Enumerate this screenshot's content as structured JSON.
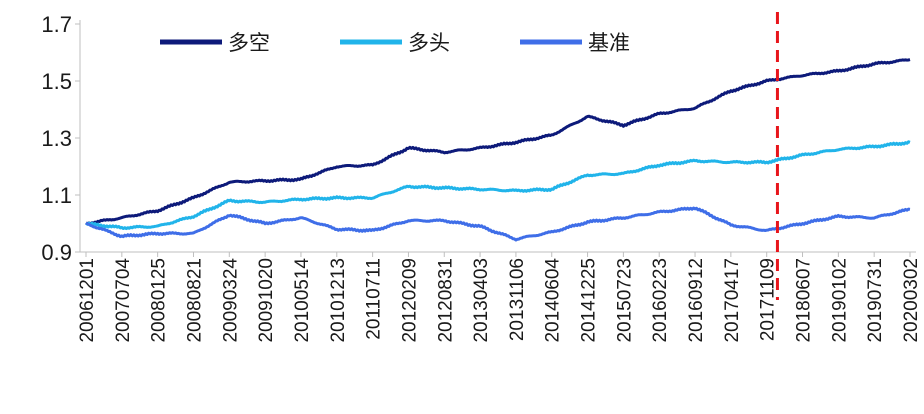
{
  "chart_data": {
    "type": "line",
    "title": "",
    "xlabel": "",
    "ylabel": "",
    "ylim": [
      0.9,
      1.7
    ],
    "yticks": [
      "0.9",
      "1.1",
      "1.3",
      "1.5",
      "1.7"
    ],
    "grid": false,
    "legend_position": "top",
    "x_ticks": [
      "20061201",
      "20070704",
      "20080125",
      "20080821",
      "20090324",
      "20091020",
      "20100514",
      "20101213",
      "20110711",
      "20120209",
      "20120831",
      "20130403",
      "20131106",
      "20140604",
      "20141225",
      "20150723",
      "20160223",
      "20160912",
      "20170417",
      "20171109",
      "20180607",
      "20190102",
      "20190731",
      "20200302"
    ],
    "vertical_marker": {
      "x_index": 19.3,
      "color": "#e8151b",
      "style": "dashed"
    },
    "series": [
      {
        "name": "多空",
        "color": "#0d1a7a",
        "values": [
          1.0,
          1.02,
          1.045,
          1.09,
          1.145,
          1.15,
          1.155,
          1.2,
          1.205,
          1.265,
          1.25,
          1.265,
          1.285,
          1.31,
          1.375,
          1.345,
          1.385,
          1.405,
          1.465,
          1.5,
          1.52,
          1.535,
          1.56,
          1.575
        ]
      },
      {
        "name": "多头",
        "color": "#21b4ea",
        "values": [
          1.0,
          0.985,
          0.99,
          1.025,
          1.08,
          1.075,
          1.085,
          1.09,
          1.09,
          1.13,
          1.125,
          1.12,
          1.115,
          1.12,
          1.17,
          1.175,
          1.205,
          1.22,
          1.215,
          1.215,
          1.24,
          1.26,
          1.27,
          1.285
        ]
      },
      {
        "name": "基准",
        "color": "#3f6ee8",
        "values": [
          1.0,
          0.955,
          0.965,
          0.965,
          1.03,
          1.0,
          1.02,
          0.98,
          0.975,
          1.01,
          1.01,
          0.99,
          0.945,
          0.97,
          1.005,
          1.02,
          1.04,
          1.055,
          0.995,
          0.975,
          1.0,
          1.025,
          1.02,
          1.05
        ]
      }
    ]
  }
}
